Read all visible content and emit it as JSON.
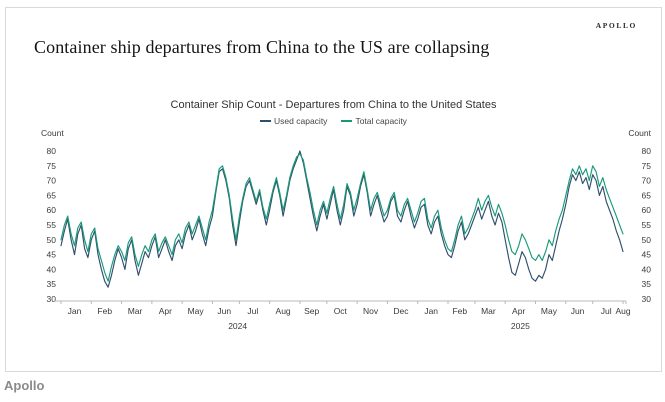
{
  "page": {
    "headline": "Container ship departures from China to the US are collapsing",
    "brand": "APOLLO",
    "footer_source": "Apollo"
  },
  "chart_data": {
    "type": "line",
    "title": "Container Ship Count - Departures from China to the United States",
    "ylabel_left": "Count",
    "ylabel_right": "Count",
    "ylim": [
      30,
      80
    ],
    "ytick_step": 5,
    "grid": false,
    "legend_position": "top-center",
    "axis_color": "#b9b9b9",
    "tick_label_color": "#3a3a3a",
    "months": [
      "Jan",
      "Feb",
      "Mar",
      "Apr",
      "May",
      "Jun",
      "Jul",
      "Aug",
      "Sep",
      "Oct",
      "Nov",
      "Dec",
      "Jan",
      "Feb",
      "Mar",
      "Apr",
      "May",
      "Jun",
      "Jul",
      "Aug"
    ],
    "points_per_month": [
      9,
      9,
      9,
      9,
      9,
      8,
      9,
      9,
      8,
      9,
      9,
      9,
      9,
      8,
      9,
      9,
      9,
      8,
      9,
      1
    ],
    "years": [
      {
        "label": "2024",
        "from_month": 0,
        "to_month": 11
      },
      {
        "label": "2025",
        "from_month": 12,
        "to_month": 19
      }
    ],
    "series": [
      {
        "name": "Used capacity",
        "color": "#2f4f6e",
        "values": [
          48,
          53,
          57,
          50,
          45,
          52,
          55,
          47,
          44,
          50,
          53,
          45,
          40,
          36,
          34,
          38,
          43,
          47,
          44,
          40,
          47,
          50,
          43,
          38,
          42,
          46,
          44,
          48,
          51,
          44,
          47,
          50,
          46,
          43,
          48,
          50,
          47,
          52,
          55,
          50,
          53,
          57,
          52,
          48,
          54,
          58,
          66,
          73,
          74,
          70,
          64,
          55,
          48,
          56,
          63,
          68,
          70,
          66,
          62,
          66,
          60,
          55,
          60,
          66,
          70,
          65,
          58,
          64,
          70,
          74,
          77,
          80,
          76,
          70,
          64,
          58,
          53,
          58,
          62,
          57,
          62,
          67,
          60,
          55,
          60,
          68,
          65,
          58,
          62,
          68,
          72,
          66,
          58,
          62,
          65,
          60,
          56,
          58,
          63,
          65,
          58,
          56,
          60,
          63,
          58,
          54,
          57,
          61,
          62,
          55,
          52,
          56,
          58,
          52,
          48,
          45,
          44,
          48,
          53,
          56,
          50,
          52,
          55,
          58,
          61,
          57,
          60,
          63,
          58,
          55,
          59,
          56,
          50,
          44,
          39,
          38,
          42,
          46,
          44,
          40,
          37,
          36,
          38,
          37,
          40,
          45,
          43,
          48,
          53,
          57,
          62,
          68,
          72,
          70,
          73,
          69,
          71,
          67,
          72,
          70,
          65,
          68,
          63,
          60,
          57,
          53,
          50,
          46
        ]
      },
      {
        "name": "Total capacity",
        "color": "#189a78",
        "values": [
          50,
          55,
          58,
          52,
          48,
          54,
          56,
          50,
          46,
          52,
          54,
          47,
          43,
          39,
          36,
          41,
          45,
          48,
          46,
          43,
          49,
          51,
          45,
          41,
          45,
          48,
          46,
          50,
          52,
          46,
          49,
          51,
          48,
          45,
          50,
          52,
          49,
          54,
          56,
          52,
          55,
          58,
          54,
          50,
          56,
          60,
          67,
          74,
          75,
          71,
          65,
          57,
          50,
          58,
          64,
          69,
          71,
          67,
          63,
          67,
          61,
          57,
          62,
          67,
          71,
          66,
          60,
          65,
          71,
          75,
          78,
          79,
          77,
          71,
          66,
          60,
          55,
          60,
          63,
          59,
          64,
          68,
          62,
          57,
          62,
          69,
          66,
          60,
          64,
          69,
          73,
          67,
          60,
          64,
          66,
          62,
          58,
          60,
          64,
          66,
          60,
          58,
          62,
          64,
          60,
          56,
          59,
          63,
          64,
          57,
          54,
          58,
          60,
          54,
          50,
          47,
          46,
          50,
          55,
          58,
          52,
          54,
          57,
          60,
          64,
          60,
          63,
          65,
          61,
          58,
          62,
          59,
          55,
          50,
          46,
          45,
          48,
          52,
          50,
          47,
          44,
          43,
          45,
          43,
          46,
          50,
          48,
          53,
          57,
          60,
          65,
          70,
          74,
          72,
          75,
          72,
          74,
          70,
          75,
          73,
          68,
          71,
          67,
          64,
          61,
          58,
          55,
          52
        ]
      }
    ]
  }
}
